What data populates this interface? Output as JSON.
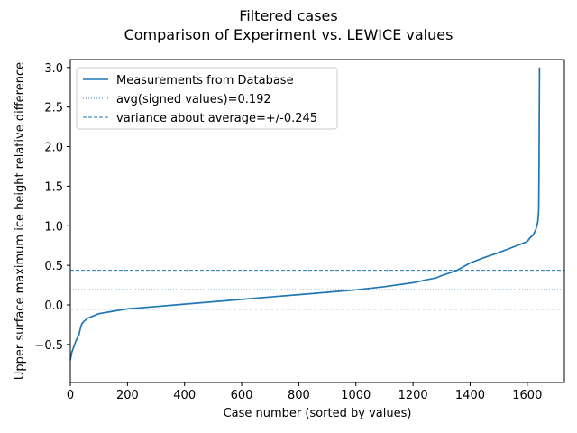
{
  "chart_data": {
    "type": "line",
    "title": "Filtered cases",
    "subtitle": "Comparison of Experiment vs. LEWICE values",
    "xlabel": "Case number (sorted by values)",
    "ylabel": "Upper surface maximum ice height relative difference",
    "xlim": [
      0,
      1730
    ],
    "ylim": [
      -0.98,
      3.1
    ],
    "xticks": [
      0,
      200,
      400,
      600,
      800,
      1000,
      1200,
      1400,
      1600
    ],
    "xtick_labels": [
      "0",
      "200",
      "400",
      "600",
      "800",
      "1000",
      "1200",
      "1400",
      "1600"
    ],
    "yticks": [
      -0.5,
      0.0,
      0.5,
      1.0,
      1.5,
      2.0,
      2.5,
      3.0
    ],
    "ytick_labels": [
      "−0.5",
      "0.0",
      "0.5",
      "1.0",
      "1.5",
      "2.0",
      "2.5",
      "3.0"
    ],
    "grid": false,
    "legend_position": "top-left",
    "color": "#1f77b4",
    "series": [
      {
        "name": "Measurements from Database",
        "style": "solid",
        "x": [
          0,
          5,
          10,
          20,
          30,
          35,
          40,
          50,
          60,
          80,
          100,
          150,
          200,
          300,
          400,
          500,
          600,
          700,
          800,
          900,
          1000,
          1100,
          1200,
          1250,
          1280,
          1300,
          1350,
          1400,
          1450,
          1500,
          1550,
          1600,
          1610,
          1620,
          1630,
          1637,
          1640,
          1641,
          1642,
          1643
        ],
        "y": [
          -0.7,
          -0.6,
          -0.55,
          -0.45,
          -0.38,
          -0.3,
          -0.24,
          -0.2,
          -0.17,
          -0.14,
          -0.11,
          -0.08,
          -0.05,
          -0.02,
          0.01,
          0.04,
          0.07,
          0.1,
          0.13,
          0.16,
          0.19,
          0.23,
          0.28,
          0.32,
          0.34,
          0.37,
          0.43,
          0.53,
          0.6,
          0.66,
          0.73,
          0.8,
          0.85,
          0.88,
          0.95,
          1.05,
          1.2,
          1.6,
          2.3,
          3.0
        ]
      },
      {
        "name": "avg(signed values)=0.192",
        "style": "dotted",
        "y_const": 0.192
      },
      {
        "name": "variance about average=+/-0.245",
        "style": "dashed",
        "y_consts": [
          0.437,
          -0.053
        ]
      }
    ]
  }
}
